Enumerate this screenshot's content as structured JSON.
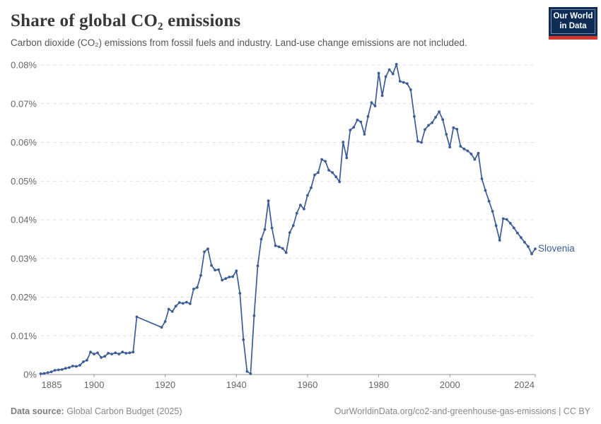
{
  "header": {
    "title": "Share of global CO₂ emissions",
    "subtitle": "Carbon dioxide (CO₂) emissions from fossil fuels and industry. Land-use change emissions are not included.",
    "logo": {
      "line1": "Our World",
      "line2": "in Data",
      "bg_color": "#0d2d56",
      "stripe_color": "#d4372e"
    }
  },
  "footer": {
    "source_label": "Data source:",
    "source_text": " Global Carbon Budget (2025)",
    "attribution": "OurWorldinData.org/co2-and-greenhouse-gas-emissions | CC BY"
  },
  "chart_data": {
    "type": "line",
    "title": "Share of global CO₂ emissions",
    "xlabel": "",
    "ylabel": "",
    "xlim": [
      1885,
      2024
    ],
    "ylim": [
      0,
      0.08
    ],
    "grid": "horizontal-dashed",
    "legend_position": "end-of-line-label",
    "x_ticks": [
      1885,
      1900,
      1920,
      1940,
      1960,
      1980,
      2000,
      2024
    ],
    "y_ticks": [
      "0%",
      "0.01%",
      "0.02%",
      "0.03%",
      "0.04%",
      "0.05%",
      "0.06%",
      "0.07%",
      "0.08%"
    ],
    "y_unit": "%",
    "colors": {
      "line": "#3b5c94",
      "grid": "#dcdcdc",
      "axis": "#9a9a9a",
      "tick_text": "#666666"
    },
    "series": [
      {
        "name": "Slovenia",
        "x": [
          1885,
          1886,
          1887,
          1888,
          1889,
          1890,
          1891,
          1892,
          1893,
          1894,
          1895,
          1896,
          1897,
          1898,
          1899,
          1900,
          1901,
          1902,
          1903,
          1904,
          1905,
          1906,
          1907,
          1908,
          1909,
          1910,
          1911,
          1912,
          1913,
          1914,
          1915,
          1916,
          1917,
          1918,
          1919,
          1920,
          1921,
          1922,
          1923,
          1924,
          1925,
          1926,
          1927,
          1928,
          1929,
          1930,
          1931,
          1932,
          1933,
          1934,
          1935,
          1936,
          1937,
          1938,
          1939,
          1940,
          1941,
          1942,
          1943,
          1944,
          1945,
          1946,
          1947,
          1948,
          1949,
          1950,
          1951,
          1952,
          1953,
          1954,
          1955,
          1956,
          1957,
          1958,
          1959,
          1960,
          1961,
          1962,
          1963,
          1964,
          1965,
          1966,
          1967,
          1968,
          1969,
          1970,
          1971,
          1972,
          1973,
          1974,
          1975,
          1976,
          1977,
          1978,
          1979,
          1980,
          1981,
          1982,
          1983,
          1984,
          1985,
          1986,
          1987,
          1988,
          1989,
          1990,
          1991,
          1992,
          1993,
          1994,
          1995,
          1996,
          1997,
          1998,
          1999,
          2000,
          2001,
          2002,
          2003,
          2004,
          2005,
          2006,
          2007,
          2008,
          2009,
          2010,
          2011,
          2012,
          2013,
          2014,
          2015,
          2016,
          2017,
          2018,
          2019,
          2020,
          2021,
          2022,
          2023,
          2024
        ],
        "values": [
          0.0002,
          0.0003,
          0.0005,
          0.0007,
          0.0011,
          0.0012,
          0.0013,
          0.0016,
          0.0018,
          0.0022,
          0.0021,
          0.0024,
          0.0033,
          0.0037,
          0.0058,
          0.0053,
          0.0056,
          0.0044,
          0.0047,
          0.0055,
          0.0053,
          0.0056,
          0.0053,
          0.0058,
          0.0055,
          0.0056,
          0.0058,
          0.0149,
          null,
          null,
          null,
          null,
          null,
          null,
          0.0122,
          0.0137,
          0.0169,
          0.0163,
          0.0177,
          0.0186,
          0.0184,
          0.0187,
          0.0183,
          0.0221,
          0.0225,
          0.0256,
          0.0317,
          0.0325,
          0.0282,
          0.027,
          0.0271,
          0.0244,
          0.0248,
          0.0252,
          0.0253,
          0.0268,
          0.021,
          0.009,
          0.0008,
          0.0002,
          0.0152,
          0.0281,
          0.035,
          0.0375,
          0.0449,
          0.0379,
          0.0333,
          0.033,
          0.0326,
          0.0315,
          0.0367,
          0.0385,
          0.0417,
          0.0438,
          0.0428,
          0.0463,
          0.0483,
          0.0516,
          0.0522,
          0.0556,
          0.0551,
          0.0528,
          0.0522,
          0.0511,
          0.0498,
          0.0601,
          0.056,
          0.0632,
          0.0639,
          0.0658,
          0.0653,
          0.0621,
          0.0667,
          0.0703,
          0.0694,
          0.0779,
          0.0721,
          0.077,
          0.0788,
          0.0777,
          0.0802,
          0.0758,
          0.0755,
          0.0752,
          0.0736,
          0.0667,
          0.0603,
          0.06,
          0.0633,
          0.0644,
          0.0651,
          0.0665,
          0.0679,
          0.0659,
          0.0621,
          0.0588,
          0.0638,
          0.0634,
          0.059,
          0.0583,
          0.0578,
          0.057,
          0.0556,
          0.0572,
          0.0506,
          0.0476,
          0.0448,
          0.0422,
          0.0385,
          0.0347,
          0.0403,
          0.0401,
          0.0391,
          0.0379,
          0.0366,
          0.0354,
          0.0342,
          0.0331,
          0.0312,
          0.0325
        ]
      }
    ]
  }
}
